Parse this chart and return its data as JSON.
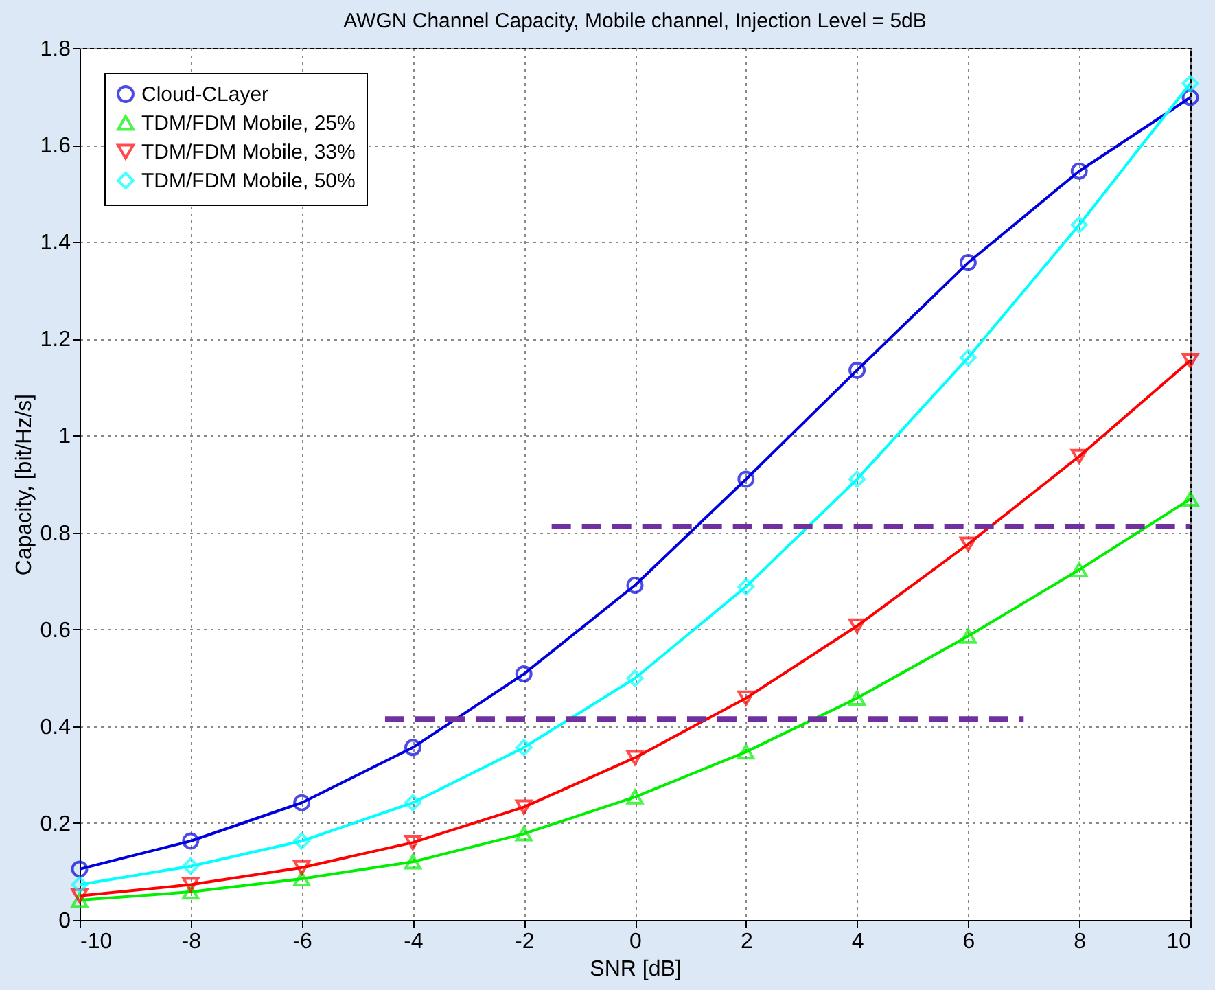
{
  "chart_data": {
    "type": "line",
    "title": "AWGN Channel Capacity, Mobile channel, Injection Level = 5dB",
    "xlabel": "SNR [dB]",
    "ylabel": "Capacity, [bit/Hz/s]",
    "x": [
      -10,
      -8,
      -6,
      -4,
      -2,
      0,
      2,
      4,
      6,
      8,
      10
    ],
    "series": [
      {
        "name": "Cloud-CLayer",
        "color": "#0000dd",
        "marker": "circle",
        "values": [
          0.105,
          0.163,
          0.242,
          0.356,
          0.508,
          0.691,
          0.91,
          1.135,
          1.357,
          1.546,
          1.698
        ]
      },
      {
        "name": "TDM/FDM Mobile, 25%",
        "color": "#00ee00",
        "marker": "triangle",
        "values": [
          0.041,
          0.058,
          0.085,
          0.12,
          0.178,
          0.254,
          0.347,
          0.458,
          0.586,
          0.723,
          0.869
        ]
      },
      {
        "name": "TDM/FDM Mobile, 33%",
        "color": "#ff0000",
        "marker": "triangle-down",
        "values": [
          0.05,
          0.073,
          0.108,
          0.16,
          0.233,
          0.335,
          0.458,
          0.607,
          0.776,
          0.957,
          1.155
        ]
      },
      {
        "name": "TDM/FDM Mobile, 50%",
        "color": "#00ffff",
        "marker": "diamond",
        "values": [
          0.073,
          0.111,
          0.163,
          0.242,
          0.356,
          0.499,
          0.688,
          0.91,
          1.161,
          1.435,
          1.727
        ]
      },
      {
        "color": "#7030a0",
        "marker": "none",
        "line_style": "dashed",
        "x": [
          -4.5,
          7
        ],
        "values": [
          0.415,
          0.415
        ]
      },
      {
        "color": "#7030a0",
        "marker": "none",
        "line_style": "dashed",
        "x": [
          -1.5,
          10
        ],
        "values": [
          0.812,
          0.812
        ]
      }
    ],
    "xlim": [
      -10,
      10
    ],
    "xticks": [
      -10,
      -8,
      -6,
      -4,
      -2,
      0,
      2,
      4,
      6,
      8,
      10
    ],
    "ylim": [
      0,
      1.8
    ],
    "yticks": [
      0,
      0.2,
      0.4,
      0.6,
      0.8,
      1,
      1.2,
      1.4,
      1.6,
      1.8
    ],
    "grid": true,
    "legend": "top left",
    "line_style": "solid"
  }
}
